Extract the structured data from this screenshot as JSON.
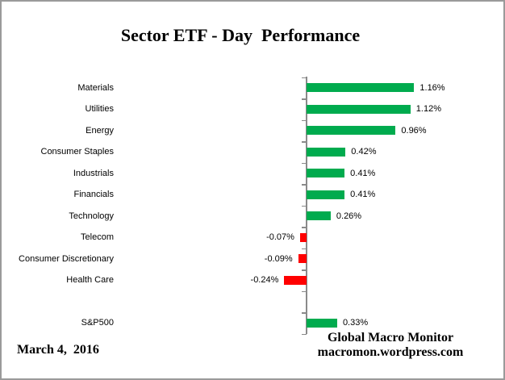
{
  "title": "Sector ETF - Day  Performance",
  "footer": {
    "date": "March 4,  2016",
    "brand_line1": "Global Macro Monitor",
    "brand_line2": "macromon.wordpress.com"
  },
  "colors": {
    "positive": "#00AB4E",
    "negative": "#FF0000",
    "axis": "#8A8A8A",
    "border": "#9A9A9A"
  },
  "chart_data": {
    "type": "bar",
    "orientation": "horizontal",
    "value_unit": "percent",
    "title": "Sector ETF - Day  Performance",
    "legend": "none",
    "grid": "off",
    "axis": {
      "zero_line": true,
      "tick_marks": "row-boundaries"
    },
    "rows": [
      {
        "label": "Materials",
        "value": 1.16,
        "display": "1.16%"
      },
      {
        "label": "Utilities",
        "value": 1.12,
        "display": "1.12%"
      },
      {
        "label": "Energy",
        "value": 0.96,
        "display": "0.96%"
      },
      {
        "label": "Consumer Staples",
        "value": 0.42,
        "display": "0.42%"
      },
      {
        "label": "Industrials",
        "value": 0.41,
        "display": "0.41%"
      },
      {
        "label": "Financials",
        "value": 0.41,
        "display": "0.41%"
      },
      {
        "label": "Technology",
        "value": 0.26,
        "display": "0.26%"
      },
      {
        "label": "Telecom",
        "value": -0.07,
        "display": "-0.07%"
      },
      {
        "label": "Consumer Discretionary",
        "value": -0.09,
        "display": "-0.09%"
      },
      {
        "label": "Health Care",
        "value": -0.24,
        "display": "-0.24%"
      },
      {
        "label": "",
        "value": null,
        "display": "",
        "spacer": true
      },
      {
        "label": "S&P500",
        "value": 0.33,
        "display": "0.33%"
      }
    ]
  }
}
